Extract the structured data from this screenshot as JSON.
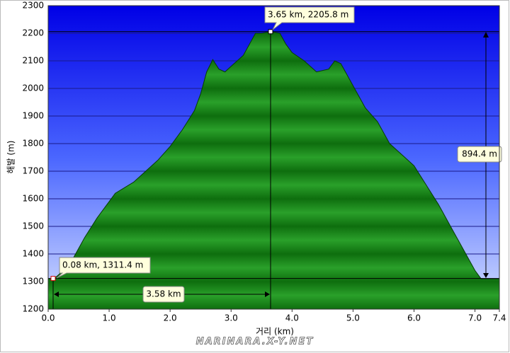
{
  "chart_data": {
    "type": "area",
    "y_label": "해발 (m)",
    "x_label": "거리 (km)",
    "annotations": [
      "3.65 km, 2205.8 m",
      "0.08 km, 1311.4 m",
      "894.4 m",
      "3.58 km"
    ],
    "watermark": "NARINARA.X-Y.NET",
    "x": [
      0,
      0.1,
      0.2,
      0.4,
      0.6,
      0.8,
      1.0,
      1.1,
      1.4,
      1.6,
      1.8,
      2.0,
      2.2,
      2.4,
      2.5,
      2.6,
      2.7,
      2.8,
      2.9,
      3.0,
      3.2,
      3.3,
      3.4,
      3.5,
      3.65,
      3.8,
      3.9,
      4.0,
      4.2,
      4.4,
      4.6,
      4.7,
      4.8,
      5.0,
      5.2,
      5.4,
      5.6,
      5.8,
      6.0,
      6.2,
      6.4,
      6.6,
      6.8,
      7.0,
      7.1,
      7.2,
      7.4
    ],
    "values": [
      1310,
      1311,
      1330,
      1380,
      1460,
      1530,
      1590,
      1620,
      1660,
      1700,
      1740,
      1790,
      1850,
      1920,
      1980,
      2060,
      2105,
      2070,
      2060,
      2080,
      2120,
      2160,
      2200,
      2200,
      2205.8,
      2200,
      2160,
      2130,
      2100,
      2060,
      2070,
      2100,
      2090,
      2010,
      1930,
      1880,
      1800,
      1760,
      1720,
      1650,
      1580,
      1500,
      1420,
      1340,
      1310,
      1310,
      1310
    ],
    "color": "#1f8f1f",
    "xlim": [
      0,
      7.4
    ],
    "ylim": [
      1200,
      2300
    ],
    "xticks": [
      {
        "value": 0,
        "label": "0.0"
      },
      {
        "value": 1,
        "label": "1.0"
      },
      {
        "value": 2,
        "label": "2.0"
      },
      {
        "value": 3,
        "label": "3.0"
      },
      {
        "value": 4,
        "label": "4.0"
      },
      {
        "value": 5,
        "label": "5.0"
      },
      {
        "value": 6,
        "label": "6.0"
      },
      {
        "value": 7,
        "label": "7.0"
      },
      7.4
    ],
    "yticks": [
      1200,
      1300,
      1400,
      1500,
      1600,
      1700,
      1800,
      1900,
      2000,
      2100,
      2200,
      2300
    ],
    "grid": true
  }
}
